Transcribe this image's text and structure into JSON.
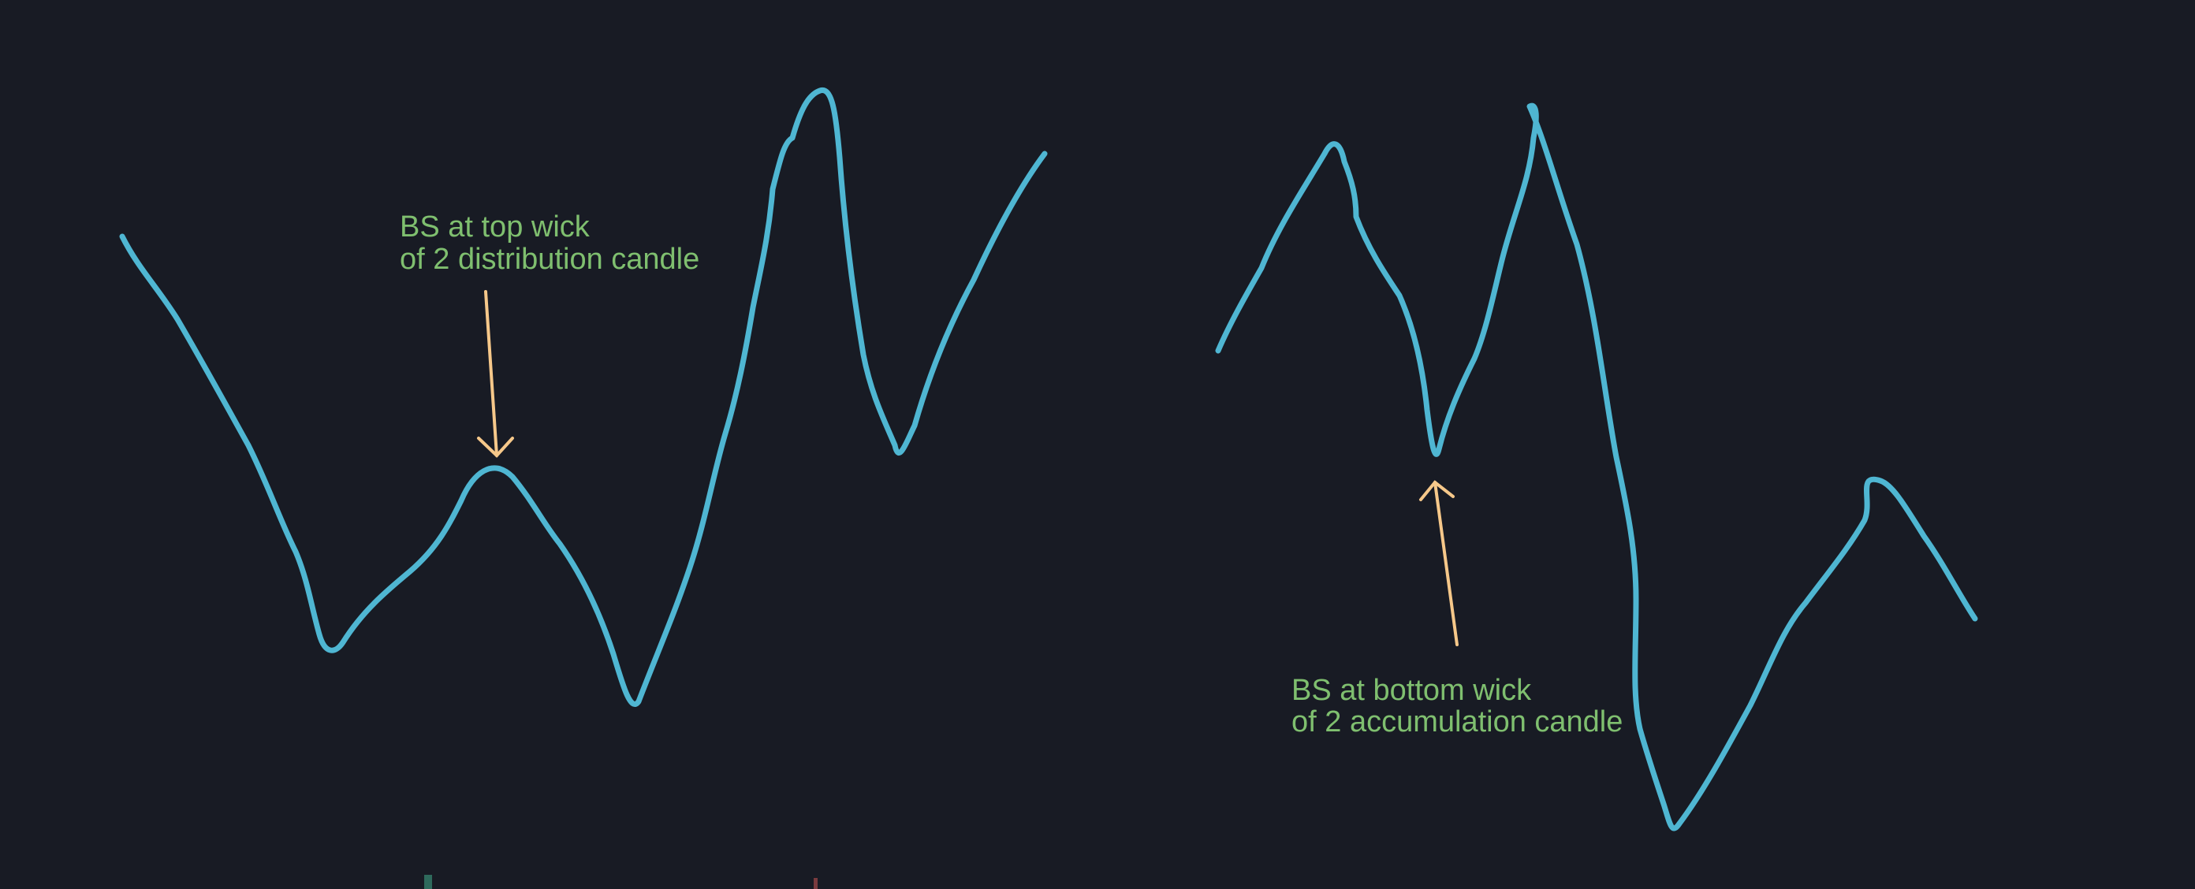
{
  "colors": {
    "background": "#181b24",
    "price_line": "#4fb6d2",
    "arrow": "#f6c88a",
    "annotation_text": "#7fbf6f",
    "candle_up_stub": "#2e6a5c",
    "candle_down_stub": "#7a3a3e"
  },
  "annotations": {
    "distribution": {
      "line1": "BS at top wick",
      "line2": "of 2 distribution candle"
    },
    "accumulation": {
      "line1": "BS at bottom wick",
      "line2": "of 2 accumulation candle"
    }
  }
}
